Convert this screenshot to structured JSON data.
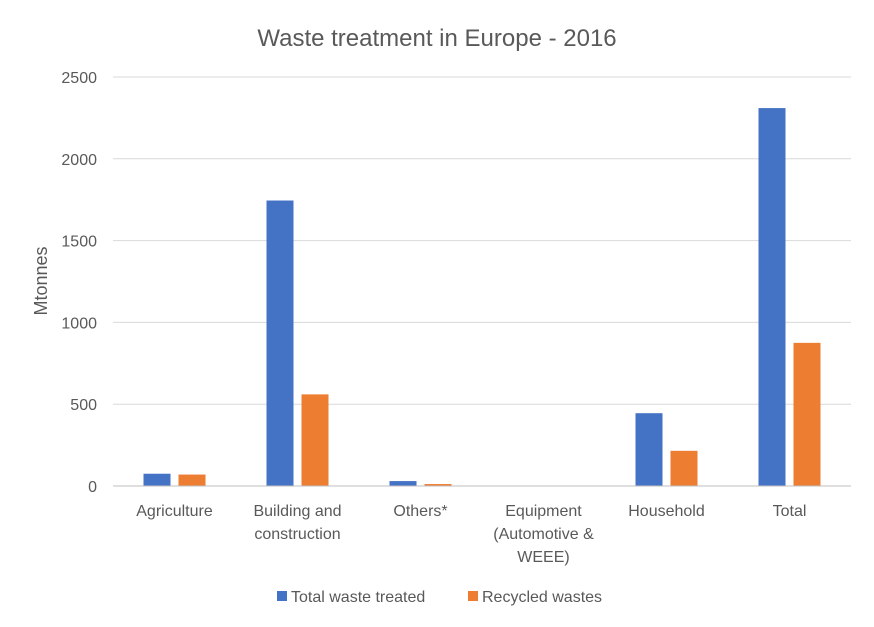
{
  "chart_data": {
    "type": "bar",
    "title": "Waste treatment in Europe - 2016",
    "xlabel": "",
    "ylabel": "Mtonnes",
    "ylim": [
      0,
      2500
    ],
    "yticks": [
      0,
      500,
      1000,
      1500,
      2000,
      2500
    ],
    "grid": true,
    "legend_position": "bottom",
    "categories": [
      [
        "Agriculture"
      ],
      [
        "Building and",
        "construction"
      ],
      [
        "Others*"
      ],
      [
        "Equipment",
        "(Automotive &",
        "WEEE)"
      ],
      [
        "Household"
      ],
      [
        "Total"
      ]
    ],
    "series": [
      {
        "name": "Total waste treated",
        "color": "#4472C4",
        "values": [
          75,
          1745,
          30,
          0,
          445,
          2310
        ]
      },
      {
        "name": "Recycled wastes",
        "color": "#ED7D31",
        "values": [
          70,
          560,
          12,
          0,
          215,
          875
        ]
      }
    ]
  }
}
